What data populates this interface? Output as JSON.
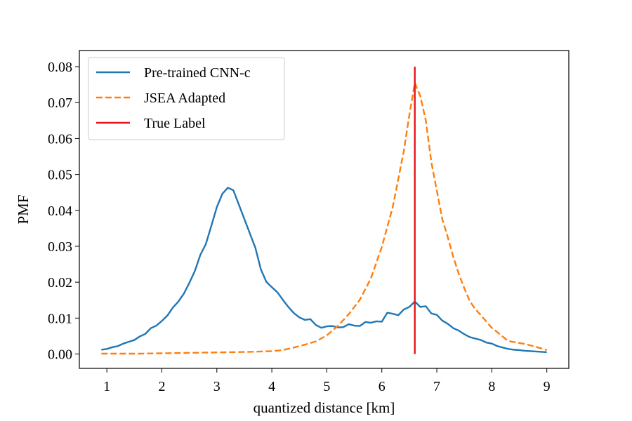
{
  "chart_data": {
    "type": "line",
    "title": "",
    "xlabel": "quantized distance [km]",
    "ylabel": "PMF",
    "xlim": [
      0.5,
      9.4
    ],
    "ylim": [
      -0.004,
      0.0845
    ],
    "xticks": [
      1,
      2,
      3,
      4,
      5,
      6,
      7,
      8,
      9
    ],
    "xtick_labels": [
      "1",
      "2",
      "3",
      "4",
      "5",
      "6",
      "7",
      "8",
      "9"
    ],
    "yticks": [
      0.0,
      0.01,
      0.02,
      0.03,
      0.04,
      0.05,
      0.06,
      0.07,
      0.08
    ],
    "ytick_labels": [
      "0.00",
      "0.01",
      "0.02",
      "0.03",
      "0.04",
      "0.05",
      "0.06",
      "0.07",
      "0.08"
    ],
    "legend_position": "top-left",
    "series": [
      {
        "name": "Pre-trained CNN-c",
        "color": "#1f77b4",
        "style": "solid",
        "x": [
          0.9,
          1.0,
          1.1,
          1.2,
          1.3,
          1.4,
          1.5,
          1.6,
          1.7,
          1.8,
          1.9,
          2.0,
          2.1,
          2.2,
          2.3,
          2.4,
          2.5,
          2.6,
          2.7,
          2.8,
          2.9,
          3.0,
          3.1,
          3.2,
          3.3,
          3.4,
          3.5,
          3.6,
          3.7,
          3.8,
          3.9,
          4.0,
          4.1,
          4.2,
          4.3,
          4.4,
          4.5,
          4.6,
          4.7,
          4.8,
          4.9,
          5.0,
          5.1,
          5.2,
          5.3,
          5.4,
          5.5,
          5.6,
          5.7,
          5.8,
          5.9,
          6.0,
          6.1,
          6.2,
          6.3,
          6.4,
          6.5,
          6.6,
          6.7,
          6.8,
          6.9,
          7.0,
          7.1,
          7.2,
          7.3,
          7.4,
          7.5,
          7.6,
          7.7,
          7.8,
          7.9,
          8.0,
          8.1,
          8.2,
          8.3,
          8.4,
          8.5,
          8.6,
          8.7,
          8.8,
          8.9,
          9.0
        ],
        "y": [
          0.0012,
          0.0014,
          0.0019,
          0.0022,
          0.0029,
          0.0034,
          0.0039,
          0.0049,
          0.0056,
          0.0072,
          0.0079,
          0.0092,
          0.0107,
          0.0129,
          0.0146,
          0.0168,
          0.0198,
          0.0231,
          0.0276,
          0.0306,
          0.0357,
          0.0409,
          0.0446,
          0.0463,
          0.0456,
          0.0416,
          0.0376,
          0.0336,
          0.0296,
          0.0236,
          0.0201,
          0.0186,
          0.0172,
          0.0151,
          0.0131,
          0.0114,
          0.0102,
          0.0095,
          0.0097,
          0.0081,
          0.0073,
          0.0077,
          0.0078,
          0.0074,
          0.0075,
          0.0083,
          0.0079,
          0.0078,
          0.0089,
          0.0087,
          0.0091,
          0.009,
          0.0115,
          0.0112,
          0.0108,
          0.0124,
          0.0131,
          0.0146,
          0.0131,
          0.0133,
          0.0113,
          0.0109,
          0.0093,
          0.0084,
          0.0072,
          0.0065,
          0.0055,
          0.0047,
          0.0043,
          0.0039,
          0.0032,
          0.0029,
          0.0022,
          0.0018,
          0.0014,
          0.0012,
          0.0011,
          0.0009,
          0.0008,
          0.0007,
          0.0006,
          0.0005
        ]
      },
      {
        "name": "JSEA Adapted",
        "color": "#ff7f0e",
        "style": "dashed",
        "x": [
          0.9,
          1.2,
          1.6,
          2.0,
          2.4,
          2.8,
          3.2,
          3.6,
          3.8,
          4.0,
          4.2,
          4.4,
          4.6,
          4.8,
          5.0,
          5.2,
          5.4,
          5.6,
          5.8,
          6.0,
          6.2,
          6.4,
          6.5,
          6.6,
          6.7,
          6.8,
          6.9,
          7.0,
          7.1,
          7.2,
          7.3,
          7.4,
          7.5,
          7.6,
          7.7,
          7.8,
          8.0,
          8.3,
          8.6,
          8.8,
          9.0
        ],
        "y": [
          0.0001,
          0.0001,
          0.0001,
          0.0002,
          0.0003,
          0.0004,
          0.0005,
          0.0006,
          0.0007,
          0.0008,
          0.0011,
          0.0018,
          0.0026,
          0.0035,
          0.0052,
          0.0078,
          0.0111,
          0.0151,
          0.021,
          0.0298,
          0.041,
          0.0565,
          0.0665,
          0.0755,
          0.0718,
          0.065,
          0.0535,
          0.0455,
          0.0375,
          0.0325,
          0.027,
          0.0223,
          0.0183,
          0.0147,
          0.0125,
          0.0108,
          0.0073,
          0.0036,
          0.0028,
          0.002,
          0.0011
        ]
      },
      {
        "name": "True Label",
        "color": "#e8141b",
        "style": "solid",
        "x": [
          6.6,
          6.6
        ],
        "y": [
          0.0,
          0.08
        ]
      }
    ]
  }
}
